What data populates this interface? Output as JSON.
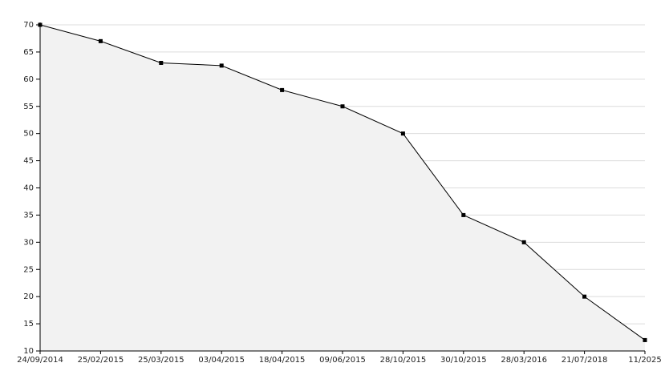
{
  "chart_data": {
    "type": "area",
    "categories": [
      "24/09/2014",
      "25/02/2015",
      "25/03/2015",
      "03/04/2015",
      "18/04/2015",
      "09/06/2015",
      "28/10/2015",
      "30/10/2015",
      "28/03/2016",
      "21/07/2018",
      "11/2025"
    ],
    "values": [
      70,
      67,
      63,
      62.5,
      58,
      55,
      50,
      35,
      30,
      20,
      12
    ],
    "color": "#000000",
    "fill": "#f2f2f2",
    "ylim": [
      10,
      70
    ],
    "yticks": [
      10,
      15,
      20,
      25,
      30,
      35,
      40,
      45,
      50,
      55,
      60,
      65,
      70
    ],
    "grid": true
  }
}
